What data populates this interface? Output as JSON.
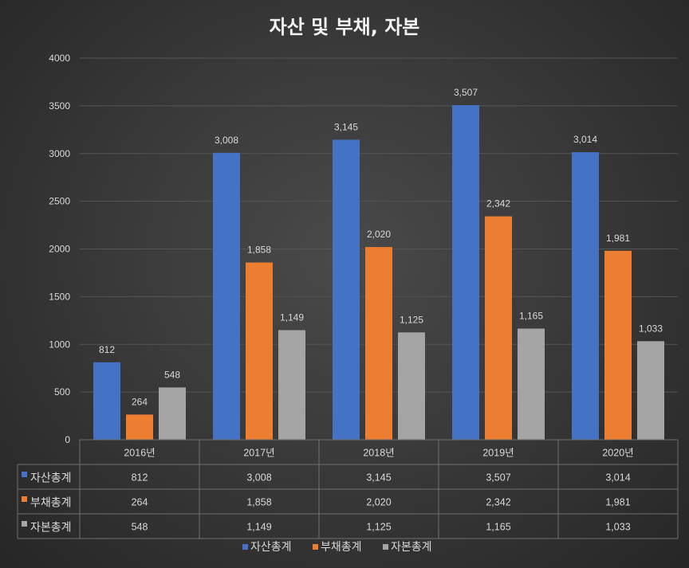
{
  "chart_data": {
    "type": "bar",
    "title": "자산 및 부채, 자본",
    "categories": [
      "2016년",
      "2017년",
      "2018년",
      "2019년",
      "2020년"
    ],
    "series": [
      {
        "name": "자산총계",
        "values": [
          812,
          3008,
          3145,
          3507,
          3014
        ],
        "labels": [
          "812",
          "3,008",
          "3,145",
          "3,507",
          "3,014"
        ],
        "color": "#4472c4"
      },
      {
        "name": "부채총계",
        "values": [
          264,
          1858,
          2020,
          2342,
          1981
        ],
        "labels": [
          "264",
          "1,858",
          "2,020",
          "2,342",
          "1,981"
        ],
        "color": "#ed7d31"
      },
      {
        "name": "자본총계",
        "values": [
          548,
          1149,
          1125,
          1165,
          1033
        ],
        "labels": [
          "548",
          "1,149",
          "1,125",
          "1,165",
          "1,033"
        ],
        "color": "#a5a5a5"
      }
    ],
    "ylim": [
      0,
      4000
    ],
    "yticks": [
      "0",
      "500",
      "1000",
      "1500",
      "2000",
      "2500",
      "3000",
      "3500",
      "4000"
    ],
    "grid": true,
    "data_table": true,
    "legend_position": "bottom"
  }
}
